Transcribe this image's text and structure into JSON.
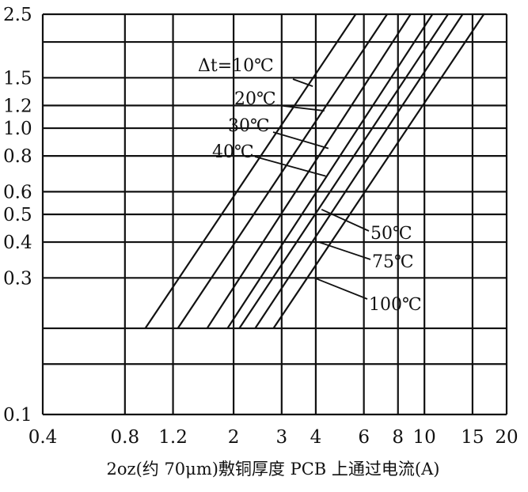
{
  "chart_data": {
    "type": "line",
    "title": "",
    "xlabel": "2oz(约 70μm)敷铜厚度 PCB 上通过电流(A)",
    "ylabel": "",
    "xscale": "log",
    "yscale": "log",
    "xlim": [
      0.4,
      20
    ],
    "ylim": [
      0.1,
      2.5
    ],
    "grid": true,
    "x_ticks": [
      0.4,
      0.8,
      1.2,
      2,
      3,
      4,
      6,
      8,
      10,
      15,
      20
    ],
    "x_tick_labels": [
      "0.4",
      "0.8",
      "1.2",
      "2",
      "3",
      "4",
      "6",
      "8",
      "10",
      "15",
      "20"
    ],
    "y_ticks": [
      0.1,
      0.15,
      0.2,
      0.3,
      0.4,
      0.5,
      0.6,
      0.8,
      1.0,
      1.2,
      1.5,
      2.0,
      2.5
    ],
    "y_tick_labels": [
      "0.1",
      "",
      "",
      "0.3",
      "0.4",
      "0.5",
      "0.6",
      "0.8",
      "1.0",
      "1.2",
      "1.5",
      "",
      "2.5"
    ],
    "series": [
      {
        "name": "Δt=10℃",
        "x": [
          0.95,
          5.6
        ],
        "y": [
          0.2,
          2.5
        ]
      },
      {
        "name": "20℃",
        "x": [
          1.25,
          7.3
        ],
        "y": [
          0.2,
          2.5
        ]
      },
      {
        "name": "30℃",
        "x": [
          1.6,
          8.9
        ],
        "y": [
          0.2,
          2.5
        ]
      },
      {
        "name": "40℃",
        "x": [
          1.9,
          10.7
        ],
        "y": [
          0.2,
          2.5
        ]
      },
      {
        "name": "50℃",
        "x": [
          2.1,
          12.2
        ],
        "y": [
          0.2,
          2.5
        ]
      },
      {
        "name": "75℃",
        "x": [
          2.4,
          13.8
        ],
        "y": [
          0.2,
          2.5
        ]
      },
      {
        "name": "100℃",
        "x": [
          2.8,
          16.5
        ],
        "y": [
          0.2,
          2.5
        ]
      }
    ],
    "annotations": [
      {
        "text": "Δt=10℃",
        "series": 0,
        "point": [
          3.9,
          1.4
        ]
      },
      {
        "text": "20℃",
        "series": 1,
        "point": [
          4.3,
          1.15
        ]
      },
      {
        "text": "30℃",
        "series": 2,
        "point": [
          4.45,
          0.85
        ]
      },
      {
        "text": "40℃",
        "series": 3,
        "point": [
          4.35,
          0.68
        ]
      },
      {
        "text": "50℃",
        "series": 4,
        "point": [
          4.2,
          0.52
        ]
      },
      {
        "text": "75℃",
        "series": 5,
        "point": [
          4.1,
          0.4
        ]
      },
      {
        "text": "100℃",
        "series": 6,
        "point": [
          3.95,
          0.3
        ]
      }
    ]
  }
}
